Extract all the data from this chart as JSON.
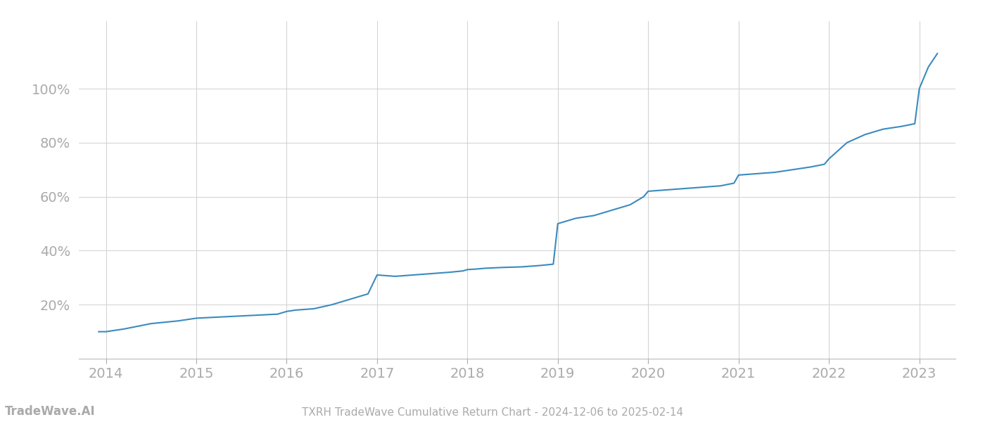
{
  "title_bottom": "TXRH TradeWave Cumulative Return Chart - 2024-12-06 to 2025-02-14",
  "watermark": "TradeWave.AI",
  "line_color": "#3a8bbf",
  "background_color": "#ffffff",
  "grid_color": "#d0d0d0",
  "x_years": [
    2014,
    2015,
    2016,
    2017,
    2018,
    2019,
    2020,
    2021,
    2022,
    2023
  ],
  "x_values": [
    2013.92,
    2014.0,
    2014.2,
    2014.5,
    2014.8,
    2015.0,
    2015.3,
    2015.6,
    2015.9,
    2016.0,
    2016.1,
    2016.3,
    2016.5,
    2016.7,
    2016.9,
    2017.0,
    2017.2,
    2017.4,
    2017.6,
    2017.8,
    2017.95,
    2018.0,
    2018.1,
    2018.2,
    2018.4,
    2018.6,
    2018.8,
    2018.95,
    2019.0,
    2019.1,
    2019.2,
    2019.4,
    2019.6,
    2019.8,
    2019.95,
    2020.0,
    2020.2,
    2020.4,
    2020.6,
    2020.8,
    2020.95,
    2021.0,
    2021.2,
    2021.4,
    2021.6,
    2021.8,
    2021.95,
    2022.0,
    2022.2,
    2022.4,
    2022.6,
    2022.8,
    2022.95,
    2023.0,
    2023.1,
    2023.2
  ],
  "y_values": [
    10,
    10,
    11,
    13,
    14,
    15,
    15.5,
    16,
    16.5,
    17.5,
    18,
    18.5,
    20,
    22,
    24,
    31,
    30.5,
    31,
    31.5,
    32,
    32.5,
    33,
    33.2,
    33.5,
    33.8,
    34,
    34.5,
    35,
    50,
    51,
    52,
    53,
    55,
    57,
    60,
    62,
    62.5,
    63,
    63.5,
    64,
    65,
    68,
    68.5,
    69,
    70,
    71,
    72,
    74,
    80,
    83,
    85,
    86,
    87,
    100,
    108,
    113
  ],
  "ylim": [
    0,
    125
  ],
  "xlim": [
    2013.7,
    2023.4
  ],
  "yticks": [
    20,
    40,
    60,
    80,
    100
  ],
  "ytick_labels": [
    "20%",
    "40%",
    "60%",
    "80%",
    "100%"
  ],
  "title_fontsize": 11,
  "watermark_fontsize": 12,
  "tick_color": "#aaaaaa",
  "axis_label_color": "#aaaaaa",
  "tick_fontsize": 14
}
